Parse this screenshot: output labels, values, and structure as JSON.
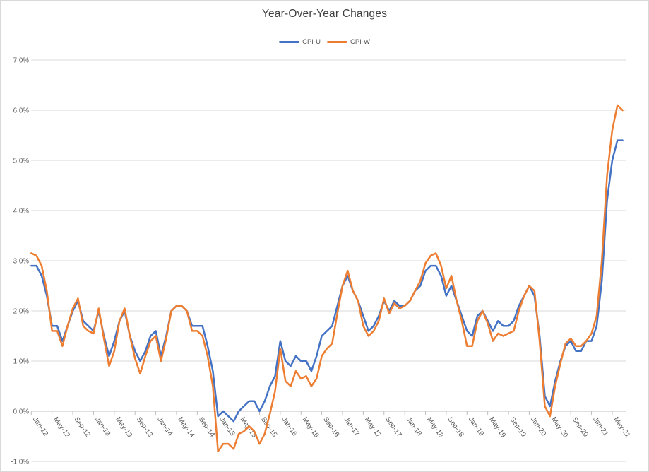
{
  "chart": {
    "title": "Year-Over-Year Changes",
    "legend": [
      {
        "label": "CPI-U",
        "color": "#4472C4"
      },
      {
        "label": "CPI-W",
        "color": "#ED7D31"
      }
    ]
  },
  "chart_data": {
    "type": "line",
    "title": "Year-Over-Year Changes",
    "grid": true,
    "legend_position": "top",
    "xlabel": "",
    "ylabel": "",
    "ylim": [
      -1.0,
      7.0
    ],
    "y_tick_step": 1.0,
    "y_tick_labels": [
      "-1.0%",
      "0.0%",
      "1.0%",
      "2.0%",
      "3.0%",
      "4.0%",
      "5.0%",
      "6.0%",
      "7.0%"
    ],
    "x_tick_every": 4,
    "x_tick_labels": [
      "Jan-12",
      "May-12",
      "Sep-12",
      "Jan-13",
      "May-13",
      "Sep-13",
      "Jan-14",
      "May-14",
      "Sep-14",
      "Jan-15",
      "May-15",
      "Sep-15",
      "Jan-16",
      "May-16",
      "Sep-16",
      "Jan-17",
      "May-17",
      "Sep-17",
      "Jan-18",
      "May-18",
      "Sep-18",
      "Jan-19",
      "May-19",
      "Sep-19",
      "Jan-20",
      "May-20",
      "Sep-20",
      "Jan-21",
      "May-21"
    ],
    "x": [
      "Jan-12",
      "Feb-12",
      "Mar-12",
      "Apr-12",
      "May-12",
      "Jun-12",
      "Jul-12",
      "Aug-12",
      "Sep-12",
      "Oct-12",
      "Nov-12",
      "Dec-12",
      "Jan-13",
      "Feb-13",
      "Mar-13",
      "Apr-13",
      "May-13",
      "Jun-13",
      "Jul-13",
      "Aug-13",
      "Sep-13",
      "Oct-13",
      "Nov-13",
      "Dec-13",
      "Jan-14",
      "Feb-14",
      "Mar-14",
      "Apr-14",
      "May-14",
      "Jun-14",
      "Jul-14",
      "Aug-14",
      "Sep-14",
      "Oct-14",
      "Nov-14",
      "Dec-14",
      "Jan-15",
      "Feb-15",
      "Mar-15",
      "Apr-15",
      "May-15",
      "Jun-15",
      "Jul-15",
      "Aug-15",
      "Sep-15",
      "Oct-15",
      "Nov-15",
      "Dec-15",
      "Jan-16",
      "Feb-16",
      "Mar-16",
      "Apr-16",
      "May-16",
      "Jun-16",
      "Jul-16",
      "Aug-16",
      "Sep-16",
      "Oct-16",
      "Nov-16",
      "Dec-16",
      "Jan-17",
      "Feb-17",
      "Mar-17",
      "Apr-17",
      "May-17",
      "Jun-17",
      "Jul-17",
      "Aug-17",
      "Sep-17",
      "Oct-17",
      "Nov-17",
      "Dec-17",
      "Jan-18",
      "Feb-18",
      "Mar-18",
      "Apr-18",
      "May-18",
      "Jun-18",
      "Jul-18",
      "Aug-18",
      "Sep-18",
      "Oct-18",
      "Nov-18",
      "Dec-18",
      "Jan-19",
      "Feb-19",
      "Mar-19",
      "Apr-19",
      "May-19",
      "Jun-19",
      "Jul-19",
      "Aug-19",
      "Sep-19",
      "Oct-19",
      "Nov-19",
      "Dec-19",
      "Jan-20",
      "Feb-20",
      "Mar-20",
      "Apr-20",
      "May-20",
      "Jun-20",
      "Jul-20",
      "Aug-20",
      "Sep-20",
      "Oct-20",
      "Nov-20",
      "Dec-20",
      "Jan-21",
      "Feb-21",
      "Mar-21",
      "Apr-21",
      "May-21",
      "Jun-21",
      "Jul-21"
    ],
    "series": [
      {
        "name": "CPI-U",
        "color": "#4472C4",
        "values": [
          2.9,
          2.9,
          2.7,
          2.3,
          1.7,
          1.7,
          1.4,
          1.7,
          2.0,
          2.2,
          1.8,
          1.7,
          1.6,
          2.0,
          1.5,
          1.1,
          1.4,
          1.8,
          2.0,
          1.5,
          1.2,
          1.0,
          1.2,
          1.5,
          1.6,
          1.1,
          1.5,
          2.0,
          2.1,
          2.1,
          2.0,
          1.7,
          1.7,
          1.7,
          1.3,
          0.8,
          -0.1,
          0.0,
          -0.1,
          -0.2,
          0.0,
          0.1,
          0.2,
          0.2,
          0.0,
          0.2,
          0.5,
          0.7,
          1.4,
          1.0,
          0.9,
          1.1,
          1.0,
          1.0,
          0.8,
          1.1,
          1.5,
          1.6,
          1.7,
          2.1,
          2.5,
          2.7,
          2.4,
          2.2,
          1.9,
          1.6,
          1.7,
          1.9,
          2.2,
          2.0,
          2.2,
          2.1,
          2.1,
          2.2,
          2.4,
          2.5,
          2.8,
          2.9,
          2.9,
          2.7,
          2.3,
          2.5,
          2.2,
          1.9,
          1.6,
          1.5,
          1.9,
          2.0,
          1.8,
          1.6,
          1.8,
          1.7,
          1.7,
          1.8,
          2.1,
          2.3,
          2.5,
          2.3,
          1.5,
          0.3,
          0.1,
          0.6,
          1.0,
          1.3,
          1.4,
          1.2,
          1.2,
          1.4,
          1.4,
          1.7,
          2.6,
          4.2,
          5.0,
          5.4,
          5.4
        ]
      },
      {
        "name": "CPI-W",
        "color": "#ED7D31",
        "values": [
          3.15,
          3.1,
          2.9,
          2.4,
          1.6,
          1.6,
          1.3,
          1.7,
          2.05,
          2.25,
          1.7,
          1.6,
          1.55,
          2.05,
          1.45,
          0.9,
          1.2,
          1.8,
          2.05,
          1.5,
          1.05,
          0.75,
          1.1,
          1.4,
          1.5,
          1.0,
          1.45,
          2.0,
          2.1,
          2.1,
          2.0,
          1.6,
          1.6,
          1.5,
          1.1,
          0.5,
          -0.8,
          -0.65,
          -0.65,
          -0.75,
          -0.45,
          -0.4,
          -0.3,
          -0.4,
          -0.65,
          -0.45,
          -0.05,
          0.4,
          1.25,
          0.6,
          0.5,
          0.8,
          0.65,
          0.7,
          0.5,
          0.65,
          1.1,
          1.25,
          1.35,
          1.95,
          2.5,
          2.8,
          2.4,
          2.2,
          1.7,
          1.5,
          1.6,
          1.8,
          2.25,
          1.95,
          2.15,
          2.05,
          2.1,
          2.2,
          2.4,
          2.6,
          2.95,
          3.1,
          3.15,
          2.9,
          2.45,
          2.7,
          2.2,
          1.8,
          1.3,
          1.3,
          1.8,
          2.0,
          1.75,
          1.4,
          1.55,
          1.5,
          1.55,
          1.6,
          2.0,
          2.3,
          2.5,
          2.4,
          1.4,
          0.1,
          -0.1,
          0.5,
          0.95,
          1.35,
          1.45,
          1.3,
          1.3,
          1.4,
          1.55,
          1.9,
          3.0,
          4.7,
          5.6,
          6.1,
          6.0
        ]
      }
    ]
  },
  "colors": {
    "grid": "#D9D9D9",
    "axis_line": "#BFBFBF",
    "tick": "#BFBFBF",
    "axis_text": "#595959",
    "title_text": "#404040",
    "background": "#FFFFFF",
    "border": "#D9D9D9"
  }
}
